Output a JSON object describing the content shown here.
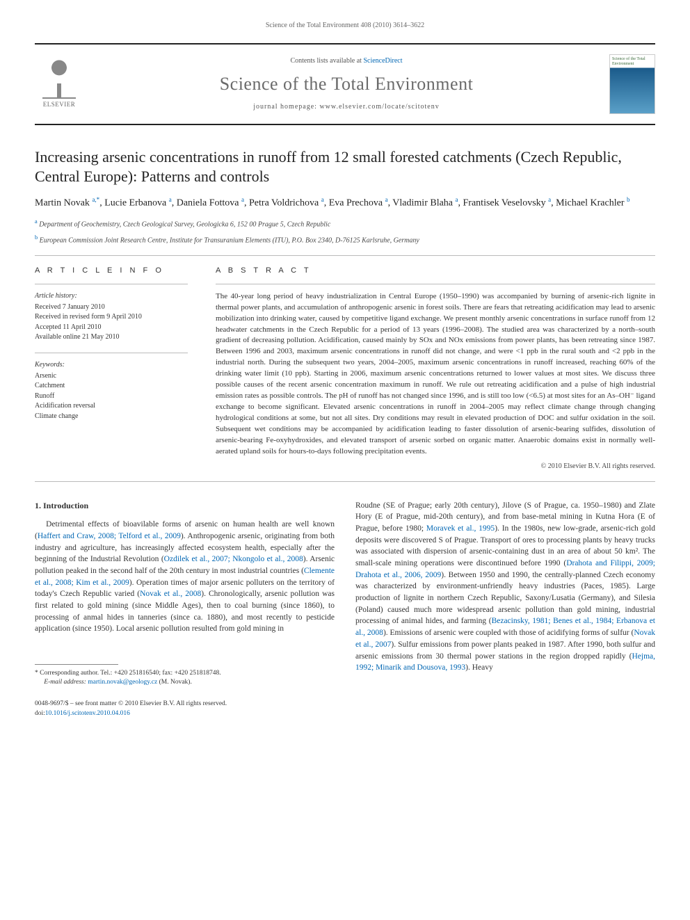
{
  "running_header": "Science of the Total Environment 408 (2010) 3614–3622",
  "banner": {
    "contents_prefix": "Contents lists available at ",
    "contents_link": "ScienceDirect",
    "journal_title": "Science of the Total Environment",
    "homepage_prefix": "journal homepage: ",
    "homepage": "www.elsevier.com/locate/scitotenv",
    "elsevier_label": "ELSEVIER",
    "cover_title": "Science of the Total Environment"
  },
  "article": {
    "title": "Increasing arsenic concentrations in runoff from 12 small forested catchments (Czech Republic, Central Europe): Patterns and controls",
    "authors_html": "Martin Novak <sup>a,*</sup>, Lucie Erbanova <sup>a</sup>, Daniela Fottova <sup>a</sup>, Petra Voldrichova <sup>a</sup>, Eva Prechova <sup>a</sup>, Vladimir Blaha <sup>a</sup>, Frantisek Veselovsky <sup>a</sup>, Michael Krachler <sup>b</sup>",
    "affiliations": [
      {
        "sup": "a",
        "text": "Department of Geochemistry, Czech Geological Survey, Geologicka 6, 152 00 Prague 5, Czech Republic"
      },
      {
        "sup": "b",
        "text": "European Commission Joint Research Centre, Institute for Transuranium Elements (ITU), P.O. Box 2340, D-76125 Karlsruhe, Germany"
      }
    ]
  },
  "info": {
    "heading": "A R T I C L E   I N F O",
    "history_label": "Article history:",
    "history": [
      "Received 7 January 2010",
      "Received in revised form 9 April 2010",
      "Accepted 11 April 2010",
      "Available online 21 May 2010"
    ],
    "keywords_label": "Keywords:",
    "keywords": [
      "Arsenic",
      "Catchment",
      "Runoff",
      "Acidification reversal",
      "Climate change"
    ]
  },
  "abstract": {
    "heading": "A B S T R A C T",
    "text": "The 40-year long period of heavy industrialization in Central Europe (1950–1990) was accompanied by burning of arsenic-rich lignite in thermal power plants, and accumulation of anthropogenic arsenic in forest soils. There are fears that retreating acidification may lead to arsenic mobilization into drinking water, caused by competitive ligand exchange. We present monthly arsenic concentrations in surface runoff from 12 headwater catchments in the Czech Republic for a period of 13 years (1996–2008). The studied area was characterized by a north–south gradient of decreasing pollution. Acidification, caused mainly by SOx and NOx emissions from power plants, has been retreating since 1987. Between 1996 and 2003, maximum arsenic concentrations in runoff did not change, and were <1 ppb in the rural south and <2 ppb in the industrial north. During the subsequent two years, 2004–2005, maximum arsenic concentrations in runoff increased, reaching 60% of the drinking water limit (10 ppb). Starting in 2006, maximum arsenic concentrations returned to lower values at most sites. We discuss three possible causes of the recent arsenic concentration maximum in runoff. We rule out retreating acidification and a pulse of high industrial emission rates as possible controls. The pH of runoff has not changed since 1996, and is still too low (<6.5) at most sites for an As–OH⁻ ligand exchange to become significant. Elevated arsenic concentrations in runoff in 2004–2005 may reflect climate change through changing hydrological conditions at some, but not all sites. Dry conditions may result in elevated production of DOC and sulfur oxidation in the soil. Subsequent wet conditions may be accompanied by acidification leading to faster dissolution of arsenic-bearing sulfides, dissolution of arsenic-bearing Fe-oxyhydroxides, and elevated transport of arsenic sorbed on organic matter. Anaerobic domains exist in normally well-aerated upland soils for hours-to-days following precipitation events.",
    "copyright": "© 2010 Elsevier B.V. All rights reserved."
  },
  "section1": {
    "heading": "1. Introduction",
    "col1_part1": "Detrimental effects of bioavilable forms of arsenic on human health are well known (",
    "col1_link1": "Haffert and Craw, 2008; Telford et al., 2009",
    "col1_part2": "). Anthropogenic arsenic, originating from both industry and agriculture, has increasingly affected ecosystem health, especially after the beginning of the Industrial Revolution (",
    "col1_link2": "Ozdilek et al., 2007; Nkongolo et al., 2008",
    "col1_part3": "). Arsenic pollution peaked in the second half of the 20th century in most industrial countries (",
    "col1_link3": "Clemente et al., 2008; Kim et al., 2009",
    "col1_part4": "). Operation times of major arsenic polluters on the territory of today's Czech Republic varied (",
    "col1_link4": "Novak et al., 2008",
    "col1_part5": "). Chronologically, arsenic pollution was first related to gold mining (since Middle Ages), then to coal burning (since 1860), to processing of anmal hides in tanneries (since ca. 1880), and most recently to pesticide application (since 1950). Local arsenic pollution resulted from gold mining in",
    "col2_part1": "Roudne (SE of Prague; early 20th century), Jilove (S of Prague, ca. 1950–1980) and Zlate Hory (E of Prague, mid-20th century), and from base-metal mining in Kutna Hora (E of Prague, before 1980; ",
    "col2_link1": "Moravek et al., 1995",
    "col2_part2": "). In the 1980s, new low-grade, arsenic-rich gold deposits were discovered S of Prague. Transport of ores to processing plants by heavy trucks was associated with dispersion of arsenic-containing dust in an area of about 50 km². The small-scale mining operations were discontinued before 1990 (",
    "col2_link2": "Drahota and Filippi, 2009; Drahota et al., 2006, 2009",
    "col2_part3": "). Between 1950 and 1990, the centrally-planned Czech economy was characterized by environment-unfriendly heavy industries (Paces, 1985). Large production of lignite in northern Czech Republic, Saxony/Lusatia (Germany), and Silesia (Poland) caused much more widespread arsenic pollution than gold mining, industrial processing of animal hides, and farming (",
    "col2_link3": "Bezacinsky, 1981; Benes et al., 1984; Erbanova et al., 2008",
    "col2_part4": "). Emissions of arsenic were coupled with those of acidifying forms of sulfur (",
    "col2_link4": "Novak et al., 2007",
    "col2_part5": "). Sulfur emissions from power plants peaked in 1987. After 1990, both sulfur and arsenic emissions from 30 thermal power stations in the region dropped rapidly (",
    "col2_link5": "Hejma, 1992; Minarik and Dousova, 1993",
    "col2_part6": "). Heavy"
  },
  "footnote": {
    "corr": "* Corresponding author. Tel.: +420 251816540; fax: +420 251818748.",
    "email_label": "E-mail address: ",
    "email": "martin.novak@geology.cz",
    "email_suffix": " (M. Novak)."
  },
  "footer": {
    "left_line1": "0048-9697/$ – see front matter © 2010 Elsevier B.V. All rights reserved.",
    "left_doi_prefix": "doi:",
    "left_doi": "10.1016/j.scitotenv.2010.04.016"
  },
  "colors": {
    "link": "#0066b3",
    "rule": "#222222",
    "muted": "#666666"
  }
}
